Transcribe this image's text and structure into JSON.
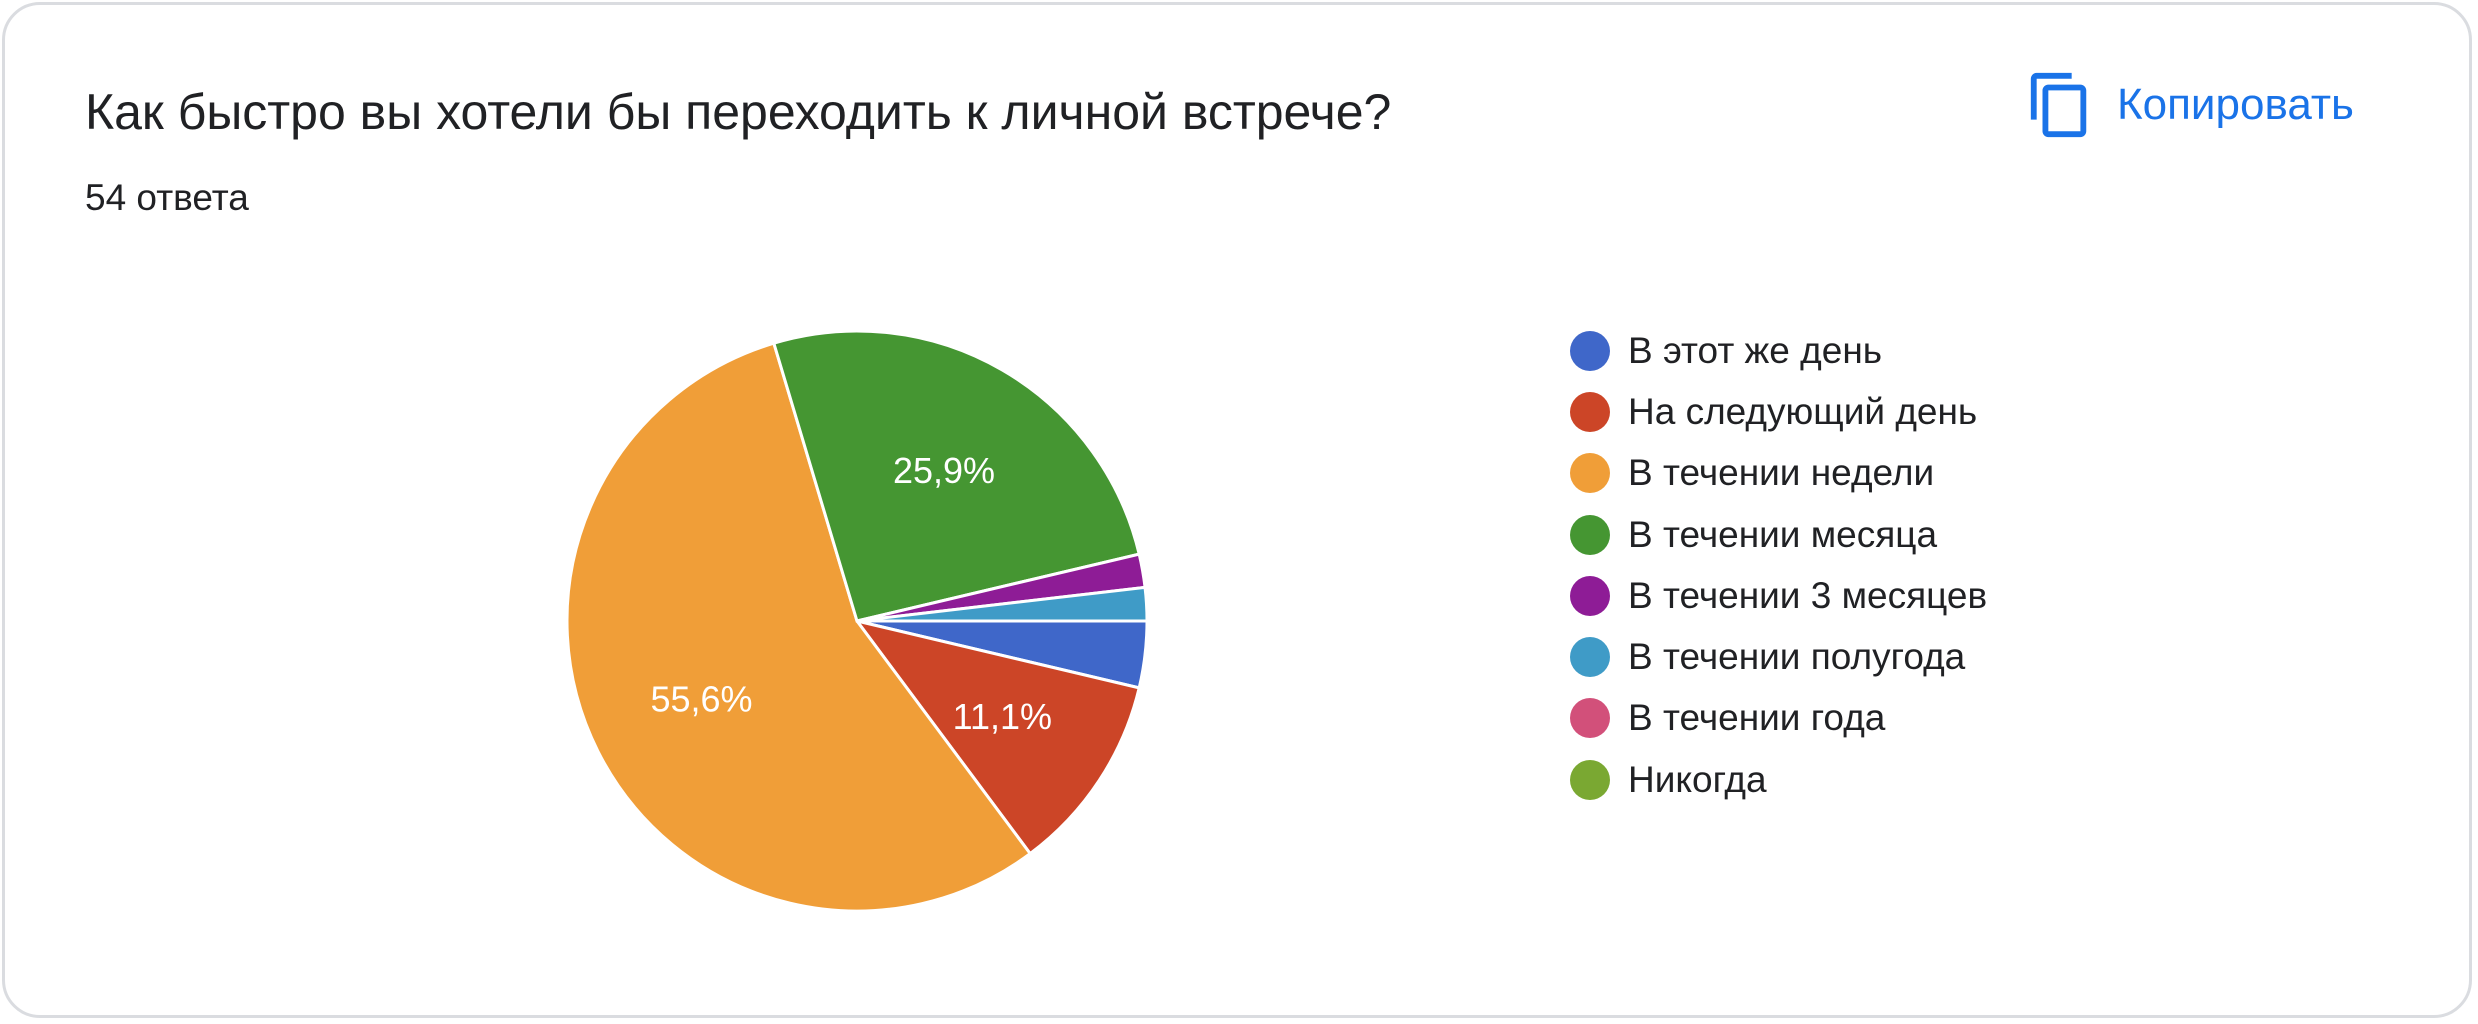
{
  "header": {
    "title": "Как быстро вы хотели бы переходить к личной встрече?",
    "response_count": "54 ответа",
    "copy_label": "Копировать",
    "copy_icon": "copy-icon",
    "accent_color": "#1a73e8"
  },
  "chart_data": {
    "type": "pie",
    "title": "Как быстро вы хотели бы переходить к личной встрече?",
    "legend_position": "right",
    "slices": [
      {
        "label": "В этот же день",
        "value": 2,
        "percent_label": "",
        "color": "#3f67c9"
      },
      {
        "label": "На следующий день",
        "value": 6,
        "percent_label": "11,1%",
        "color": "#cc4527"
      },
      {
        "label": "В течении недели",
        "value": 30,
        "percent_label": "55,6%",
        "color": "#f09e38"
      },
      {
        "label": "В течении месяца",
        "value": 14,
        "percent_label": "25,9%",
        "color": "#459632"
      },
      {
        "label": "В течении 3 месяцев",
        "value": 1,
        "percent_label": "",
        "color": "#8e1c96"
      },
      {
        "label": "В течении полугода",
        "value": 1,
        "percent_label": "",
        "color": "#3f9bc7"
      },
      {
        "label": "В течении года",
        "value": 0,
        "percent_label": "",
        "color": "#d2507a"
      },
      {
        "label": "Никогда",
        "value": 0,
        "percent_label": "",
        "color": "#7aa832"
      }
    ]
  }
}
